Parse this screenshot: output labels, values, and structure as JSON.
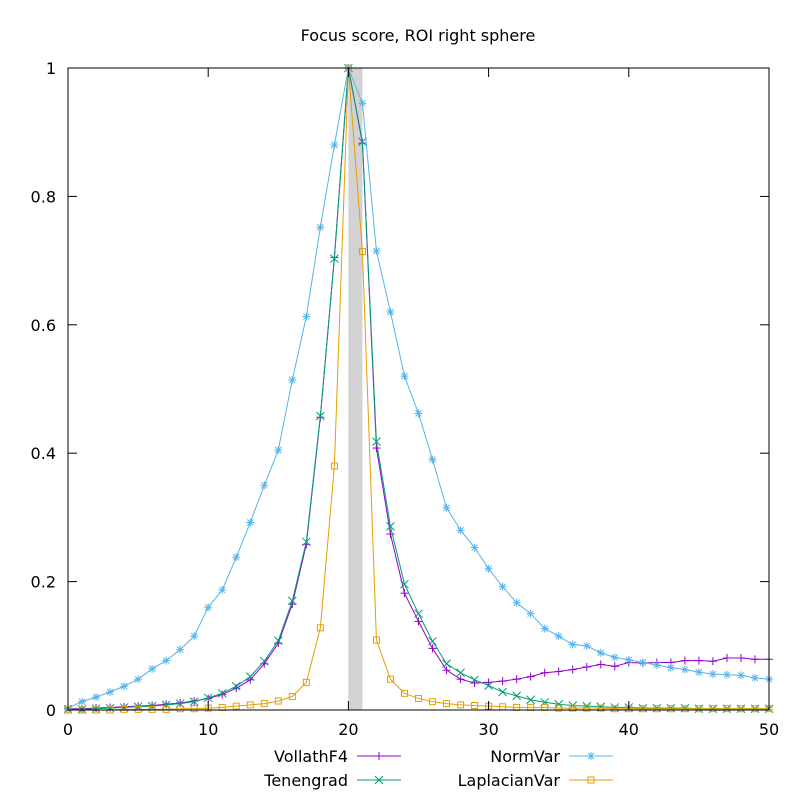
{
  "chart_data": {
    "type": "line",
    "title": "Focus score, ROI right sphere",
    "xlabel": "",
    "ylabel": "",
    "xlim": [
      0,
      50
    ],
    "ylim": [
      0,
      1
    ],
    "xticks": [
      0,
      10,
      20,
      30,
      40,
      50
    ],
    "yticks": [
      0,
      0.2,
      0.4,
      0.6,
      0.8,
      1
    ],
    "ytick_labels": [
      "0",
      "0.2",
      "0.4",
      "0.6",
      "0.8",
      "1"
    ],
    "grid": false,
    "legend_position": "bottom",
    "highlight_band": {
      "x0": 20,
      "x1": 21,
      "color": "#d3d3d3"
    },
    "x": [
      0,
      1,
      2,
      3,
      4,
      5,
      6,
      7,
      8,
      9,
      10,
      11,
      12,
      13,
      14,
      15,
      16,
      17,
      18,
      19,
      20,
      21,
      22,
      23,
      24,
      25,
      26,
      27,
      28,
      29,
      30,
      31,
      32,
      33,
      34,
      35,
      36,
      37,
      38,
      39,
      40,
      41,
      42,
      43,
      44,
      45,
      46,
      47,
      48,
      49,
      50
    ],
    "series": [
      {
        "name": "VollathF4",
        "color": "#9400d3",
        "marker": "plus",
        "values": [
          0.002,
          0.002,
          0.003,
          0.004,
          0.005,
          0.006,
          0.007,
          0.009,
          0.011,
          0.014,
          0.018,
          0.024,
          0.034,
          0.047,
          0.072,
          0.104,
          0.165,
          0.258,
          0.456,
          0.705,
          1.0,
          0.883,
          0.408,
          0.274,
          0.182,
          0.138,
          0.096,
          0.062,
          0.048,
          0.042,
          0.043,
          0.045,
          0.048,
          0.052,
          0.058,
          0.06,
          0.063,
          0.067,
          0.071,
          0.068,
          0.074,
          0.073,
          0.074,
          0.074,
          0.077,
          0.077,
          0.076,
          0.081,
          0.081,
          0.079,
          0.079
        ]
      },
      {
        "name": "Tenengrad",
        "color": "#009e73",
        "marker": "x",
        "values": [
          0.001,
          0.001,
          0.002,
          0.003,
          0.004,
          0.005,
          0.006,
          0.008,
          0.01,
          0.013,
          0.019,
          0.026,
          0.037,
          0.052,
          0.076,
          0.108,
          0.17,
          0.262,
          0.458,
          0.703,
          1.0,
          0.885,
          0.418,
          0.286,
          0.196,
          0.15,
          0.107,
          0.072,
          0.058,
          0.047,
          0.038,
          0.028,
          0.022,
          0.016,
          0.012,
          0.009,
          0.007,
          0.006,
          0.005,
          0.004,
          0.004,
          0.003,
          0.003,
          0.003,
          0.003,
          0.002,
          0.002,
          0.002,
          0.002,
          0.002,
          0.002
        ]
      },
      {
        "name": "NormVar",
        "color": "#56b4e9",
        "marker": "star",
        "values": [
          0.003,
          0.013,
          0.02,
          0.028,
          0.037,
          0.048,
          0.064,
          0.077,
          0.094,
          0.115,
          0.16,
          0.187,
          0.238,
          0.292,
          0.35,
          0.405,
          0.514,
          0.613,
          0.752,
          0.88,
          1.0,
          0.945,
          0.715,
          0.62,
          0.52,
          0.462,
          0.39,
          0.315,
          0.28,
          0.253,
          0.22,
          0.192,
          0.167,
          0.15,
          0.127,
          0.115,
          0.102,
          0.1,
          0.089,
          0.082,
          0.078,
          0.074,
          0.07,
          0.066,
          0.063,
          0.059,
          0.056,
          0.055,
          0.054,
          0.05,
          0.048
        ]
      },
      {
        "name": "LaplacianVar",
        "color": "#e69f00",
        "marker": "square",
        "values": [
          0.0,
          0.0,
          0.0,
          0.0,
          0.001,
          0.001,
          0.001,
          0.001,
          0.002,
          0.002,
          0.003,
          0.004,
          0.006,
          0.008,
          0.01,
          0.014,
          0.021,
          0.043,
          0.128,
          0.38,
          1.0,
          0.714,
          0.109,
          0.048,
          0.026,
          0.018,
          0.013,
          0.01,
          0.008,
          0.007,
          0.006,
          0.005,
          0.004,
          0.004,
          0.004,
          0.003,
          0.003,
          0.003,
          0.003,
          0.002,
          0.002,
          0.002,
          0.002,
          0.002,
          0.002,
          0.002,
          0.002,
          0.002,
          0.002,
          0.002,
          0.002
        ]
      }
    ]
  }
}
